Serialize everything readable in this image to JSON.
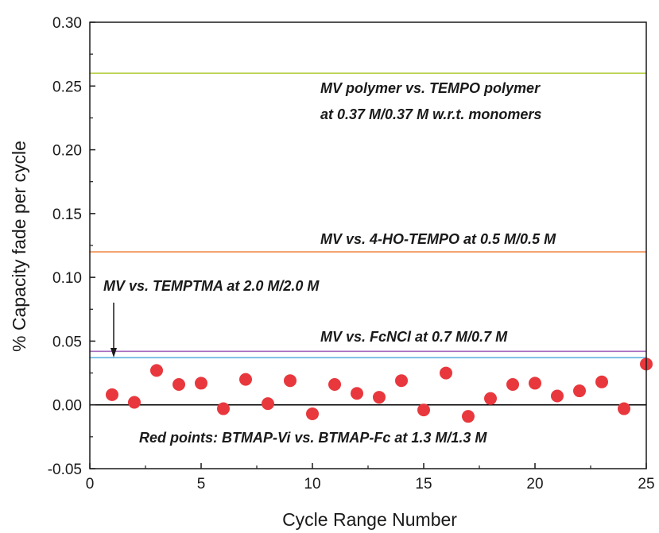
{
  "chart_data": {
    "type": "scatter",
    "xlabel": "Cycle Range Number",
    "ylabel": "% Capacity fade per cycle",
    "xlim": [
      0,
      25
    ],
    "ylim": [
      -0.05,
      0.3
    ],
    "xticks": [
      "0",
      "5",
      "10",
      "15",
      "20",
      "25"
    ],
    "yticks": [
      "-0.05",
      "0.00",
      "0.05",
      "0.10",
      "0.15",
      "0.20",
      "0.25",
      "0.30"
    ],
    "grid": false,
    "series": [
      {
        "name": "Red points: BTMAP-Vi vs. BTMAP-Fc at 1.3 M/1.3 M",
        "color": "#e8383d",
        "x": [
          1,
          2,
          3,
          4,
          5,
          6,
          7,
          8,
          9,
          10,
          11,
          12,
          13,
          14,
          15,
          16,
          17,
          18,
          19,
          20,
          21,
          22,
          23,
          24,
          25
        ],
        "y": [
          0.008,
          0.002,
          0.027,
          0.016,
          0.017,
          -0.003,
          0.02,
          0.001,
          0.019,
          -0.007,
          0.016,
          0.009,
          0.006,
          0.019,
          -0.004,
          0.025,
          -0.009,
          0.005,
          0.016,
          0.017,
          0.007,
          0.011,
          0.018,
          -0.003,
          0.032
        ]
      }
    ],
    "reference_lines": [
      {
        "y": 0.26,
        "color": "#b8d14a",
        "label_lines": [
          "MV polymer vs. TEMPO polymer",
          "at 0.37 M/0.37 M w.r.t. monomers"
        ]
      },
      {
        "y": 0.12,
        "color": "#f08a4b",
        "label_lines": [
          "MV vs. 4-HO-TEMPO at 0.5 M/0.5 M"
        ]
      },
      {
        "y": 0.042,
        "color": "#a66bbf",
        "label_lines": [
          "MV vs. FcNCl at 0.7 M/0.7 M"
        ]
      },
      {
        "y": 0.037,
        "color": "#5fb3e0",
        "label_lines": [
          "MV vs. TEMPTMA at 2.0 M/2.0 M"
        ]
      },
      {
        "y": 0.0,
        "color": "#000000",
        "label_lines": []
      }
    ]
  }
}
